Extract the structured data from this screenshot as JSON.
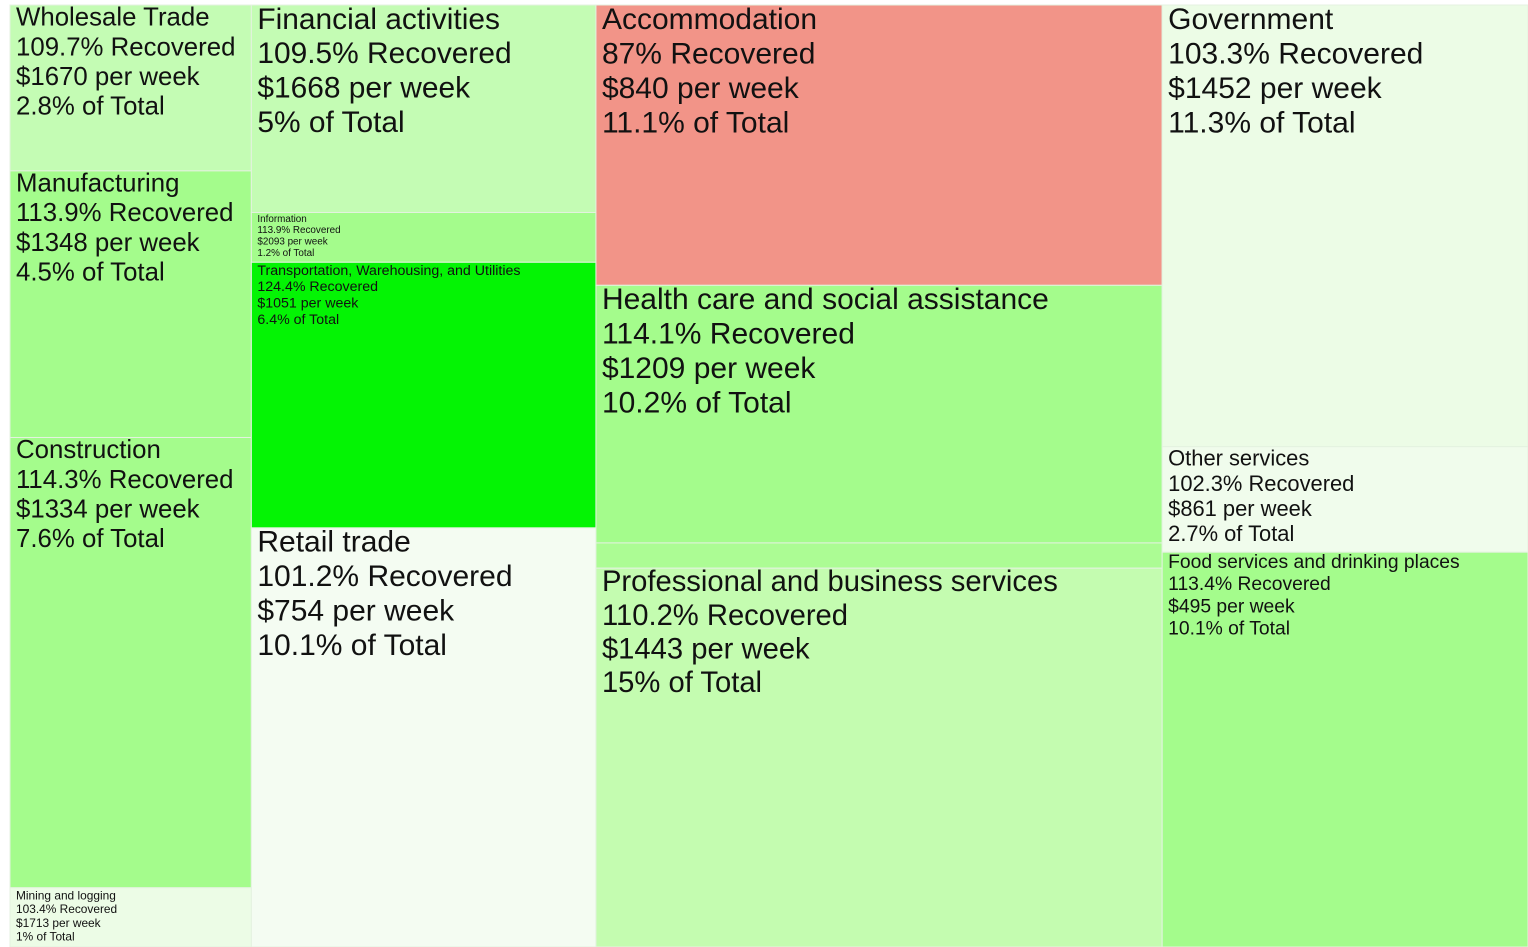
{
  "chart_data": {
    "type": "treemap",
    "groups": [
      {
        "children": [
          {
            "name": "Wholesale Trade",
            "value": 2.8,
            "value_label": "2.8% of Total",
            "recovered": 109.7,
            "recovered_label": "109.7% Recovered",
            "wage": 1670,
            "wage_label": "$1670 per week",
            "color": "#c4fcb4"
          },
          {
            "name": "Manufacturing",
            "value": 4.5,
            "value_label": "4.5% of Total",
            "recovered": 113.9,
            "recovered_label": "113.9% Recovered",
            "wage": 1348,
            "wage_label": "$1348 per week",
            "color": "#a4fc8c"
          },
          {
            "name": "Construction",
            "value": 7.6,
            "value_label": "7.6% of Total",
            "recovered": 114.3,
            "recovered_label": "114.3% Recovered",
            "wage": 1334,
            "wage_label": "$1334 per week",
            "color": "#a4fc8c"
          },
          {
            "name": "Mining and logging",
            "value": 1,
            "value_label": "1% of Total",
            "recovered": 103.4,
            "recovered_label": "103.4% Recovered",
            "wage": 1713,
            "wage_label": "$1713 per week",
            "color": "#ecfce6"
          }
        ]
      },
      {
        "children": [
          {
            "name": "Financial activities",
            "value": 5,
            "value_label": "5% of Total",
            "recovered": 109.5,
            "recovered_label": "109.5% Recovered",
            "wage": 1668,
            "wage_label": "$1668 per week",
            "color": "#c4fcb4"
          },
          {
            "name": "Information",
            "value": 1.2,
            "value_label": "1.2% of Total",
            "recovered": 113.9,
            "recovered_label": "113.9% Recovered",
            "wage": 2093,
            "wage_label": "$2093 per week",
            "color": "#a4fc8c"
          },
          {
            "name": "Transportation, Warehousing, and Utilities",
            "value": 6.4,
            "value_label": "6.4% of Total",
            "recovered": 124.4,
            "recovered_label": "124.4% Recovered",
            "wage": 1051,
            "wage_label": "$1051 per week",
            "color": "#04f404"
          },
          {
            "name": "Retail trade",
            "value": 10.1,
            "value_label": "10.1% of Total",
            "recovered": 101.2,
            "recovered_label": "101.2% Recovered",
            "wage": 754,
            "wage_label": "$754 per week",
            "color": "#f4fcf2"
          }
        ]
      },
      {
        "children": [
          {
            "name": "Accommodation",
            "value": 11.1,
            "value_label": "11.1% of Total",
            "recovered": 87,
            "recovered_label": "87% Recovered",
            "wage": 840,
            "wage_label": "$840 per week",
            "color": "#f29488"
          },
          {
            "name": "Health care and social assistance",
            "value": 10.2,
            "value_label": "10.2% of Total",
            "recovered": 114.1,
            "recovered_label": "114.1% Recovered",
            "wage": 1209,
            "wage_label": "$1209 per week",
            "color": "#a4fc8c"
          },
          {
            "name": null,
            "value": 1,
            "color": "#acfc94"
          },
          {
            "name": "Professional and business services",
            "value": 15,
            "value_label": "15% of Total",
            "recovered": 110.2,
            "recovered_label": "110.2% Recovered",
            "wage": 1443,
            "wage_label": "$1443 per week",
            "color": "#c4fcb0"
          }
        ]
      },
      {
        "children": [
          {
            "name": "Government",
            "value": 11.3,
            "value_label": "11.3% of Total",
            "recovered": 103.3,
            "recovered_label": "103.3% Recovered",
            "wage": 1452,
            "wage_label": "$1452 per week",
            "color": "#ecfce6"
          },
          {
            "name": "Other services",
            "value": 2.7,
            "value_label": "2.7% of Total",
            "recovered": 102.3,
            "recovered_label": "102.3% Recovered",
            "wage": 861,
            "wage_label": "$861 per week",
            "color": "#f0fcec"
          },
          {
            "name": "Food services and drinking places",
            "value": 10.1,
            "value_label": "10.1% of Total",
            "recovered": 113.4,
            "recovered_label": "113.4% Recovered",
            "wage": 495,
            "wage_label": "$495 per week",
            "color": "#a4fc8c"
          }
        ]
      }
    ]
  }
}
